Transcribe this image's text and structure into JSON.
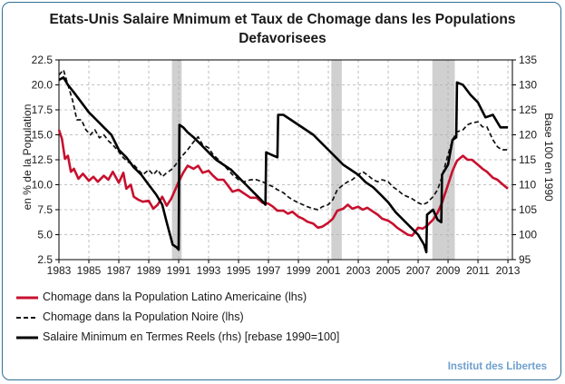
{
  "page": {
    "title_line1": "Etats-Unis Salaire Mnimum et Taux de Chomage  dans les Populations",
    "title_line2": "Defavorisees",
    "brand": "Institut des Libertes"
  },
  "colors": {
    "latino": "#c8102e",
    "noire": "#111111",
    "salaire": "#000000",
    "recession": "#d0d0d0",
    "grid": "#b0b0b0",
    "border": "#2f6f98",
    "brand": "#6f9fcf"
  },
  "chart_data": {
    "type": "line",
    "title": "Etats-Unis Salaire Mnimum et Taux de Chomage  dans les Populations Defavorisees",
    "xlabel": "",
    "ylabel_left": "en % de la Population",
    "ylabel_right": "Base 100 en 1990",
    "xlim": [
      1983,
      2013.3
    ],
    "ylim_left": [
      2.5,
      22.5
    ],
    "ylim_right": [
      95,
      135
    ],
    "x_ticks": [
      "1983",
      "1985",
      "1987",
      "1989",
      "1991",
      "1993",
      "1995",
      "1997",
      "1999",
      "2001",
      "2003",
      "2005",
      "2007",
      "2009",
      "2011",
      "2013"
    ],
    "y_left_ticks": [
      "2.5",
      "5.0",
      "7.5",
      "10.0",
      "12.5",
      "15.0",
      "17.5",
      "20.0",
      "22.5"
    ],
    "y_right_ticks": [
      "95",
      "100",
      "105",
      "110",
      "115",
      "120",
      "125",
      "130",
      "135"
    ],
    "grid": true,
    "recessions": [
      [
        1990.55,
        1991.2
      ],
      [
        2001.2,
        2001.9
      ],
      [
        2007.95,
        2009.45
      ]
    ],
    "series": [
      {
        "name": "Chomage dans la Population Latino Americaine (lhs)",
        "axis": "left",
        "style": "solid",
        "points": [
          [
            1983.0,
            15.5
          ],
          [
            1983.2,
            14.6
          ],
          [
            1983.4,
            12.6
          ],
          [
            1983.6,
            12.9
          ],
          [
            1983.8,
            11.3
          ],
          [
            1984.0,
            11.6
          ],
          [
            1984.3,
            10.6
          ],
          [
            1984.6,
            11.1
          ],
          [
            1985.0,
            10.4
          ],
          [
            1985.3,
            10.8
          ],
          [
            1985.6,
            10.3
          ],
          [
            1986.0,
            10.9
          ],
          [
            1986.3,
            10.5
          ],
          [
            1986.6,
            11.3
          ],
          [
            1987.0,
            10.2
          ],
          [
            1987.3,
            11.2
          ],
          [
            1987.5,
            9.6
          ],
          [
            1987.8,
            10.0
          ],
          [
            1988.0,
            8.8
          ],
          [
            1988.3,
            8.5
          ],
          [
            1988.6,
            8.3
          ],
          [
            1989.0,
            8.4
          ],
          [
            1989.3,
            7.6
          ],
          [
            1989.6,
            8.0
          ],
          [
            1989.9,
            8.8
          ],
          [
            1990.2,
            7.9
          ],
          [
            1990.5,
            8.6
          ],
          [
            1990.8,
            9.6
          ],
          [
            1991.0,
            10.3
          ],
          [
            1991.3,
            11.2
          ],
          [
            1991.6,
            11.9
          ],
          [
            1992.0,
            11.6
          ],
          [
            1992.3,
            11.9
          ],
          [
            1992.6,
            11.2
          ],
          [
            1993.0,
            11.4
          ],
          [
            1993.3,
            10.9
          ],
          [
            1993.6,
            10.5
          ],
          [
            1994.0,
            10.5
          ],
          [
            1994.3,
            9.9
          ],
          [
            1994.6,
            9.3
          ],
          [
            1995.0,
            9.5
          ],
          [
            1995.4,
            9.1
          ],
          [
            1995.8,
            8.7
          ],
          [
            1996.2,
            8.7
          ],
          [
            1996.6,
            8.2
          ],
          [
            1997.0,
            8.1
          ],
          [
            1997.3,
            7.8
          ],
          [
            1997.6,
            7.4
          ],
          [
            1998.0,
            7.4
          ],
          [
            1998.3,
            7.1
          ],
          [
            1998.6,
            7.3
          ],
          [
            1999.0,
            6.8
          ],
          [
            1999.3,
            6.6
          ],
          [
            1999.6,
            6.3
          ],
          [
            2000.0,
            6.1
          ],
          [
            2000.3,
            5.7
          ],
          [
            2000.6,
            5.8
          ],
          [
            2001.0,
            6.2
          ],
          [
            2001.3,
            6.6
          ],
          [
            2001.6,
            7.4
          ],
          [
            2002.0,
            7.6
          ],
          [
            2002.3,
            8.0
          ],
          [
            2002.6,
            7.6
          ],
          [
            2003.0,
            7.8
          ],
          [
            2003.3,
            7.5
          ],
          [
            2003.6,
            7.7
          ],
          [
            2004.0,
            7.3
          ],
          [
            2004.3,
            7.0
          ],
          [
            2004.6,
            6.6
          ],
          [
            2005.0,
            6.4
          ],
          [
            2005.3,
            6.1
          ],
          [
            2005.6,
            5.7
          ],
          [
            2006.0,
            5.3
          ],
          [
            2006.3,
            5.0
          ],
          [
            2006.6,
            4.9
          ],
          [
            2007.0,
            5.7
          ],
          [
            2007.3,
            5.6
          ],
          [
            2007.6,
            5.9
          ],
          [
            2008.0,
            6.5
          ],
          [
            2008.3,
            7.2
          ],
          [
            2008.6,
            8.2
          ],
          [
            2009.0,
            10.0
          ],
          [
            2009.3,
            11.4
          ],
          [
            2009.6,
            12.4
          ],
          [
            2010.0,
            12.9
          ],
          [
            2010.3,
            12.5
          ],
          [
            2010.6,
            12.5
          ],
          [
            2011.0,
            12.0
          ],
          [
            2011.3,
            11.6
          ],
          [
            2011.6,
            11.3
          ],
          [
            2012.0,
            10.7
          ],
          [
            2012.3,
            10.5
          ],
          [
            2012.6,
            10.1
          ],
          [
            2013.0,
            9.6
          ]
        ]
      },
      {
        "name": "Chomage dans la Population Noire (lhs)",
        "axis": "left",
        "style": "dashed",
        "points": [
          [
            1983.0,
            21.0
          ],
          [
            1983.3,
            21.5
          ],
          [
            1983.6,
            20.0
          ],
          [
            1983.9,
            18.5
          ],
          [
            1984.2,
            16.5
          ],
          [
            1984.5,
            16.5
          ],
          [
            1984.8,
            15.5
          ],
          [
            1985.1,
            15.0
          ],
          [
            1985.4,
            15.5
          ],
          [
            1985.7,
            14.7
          ],
          [
            1986.0,
            15.0
          ],
          [
            1986.3,
            14.4
          ],
          [
            1986.6,
            14.0
          ],
          [
            1987.0,
            13.3
          ],
          [
            1987.3,
            12.7
          ],
          [
            1987.6,
            12.3
          ],
          [
            1988.0,
            12.0
          ],
          [
            1988.3,
            11.5
          ],
          [
            1988.6,
            11.0
          ],
          [
            1989.0,
            11.5
          ],
          [
            1989.3,
            11.0
          ],
          [
            1989.6,
            11.5
          ],
          [
            1989.9,
            10.8
          ],
          [
            1990.2,
            11.2
          ],
          [
            1990.5,
            11.5
          ],
          [
            1990.8,
            12.0
          ],
          [
            1991.0,
            12.5
          ],
          [
            1991.3,
            13.0
          ],
          [
            1991.6,
            13.5
          ],
          [
            1992.0,
            14.3
          ],
          [
            1992.3,
            14.8
          ],
          [
            1992.6,
            14.0
          ],
          [
            1993.0,
            13.7
          ],
          [
            1993.3,
            13.0
          ],
          [
            1993.6,
            12.6
          ],
          [
            1994.0,
            12.0
          ],
          [
            1994.3,
            11.5
          ],
          [
            1994.6,
            11.0
          ],
          [
            1995.0,
            10.5
          ],
          [
            1995.4,
            10.3
          ],
          [
            1995.8,
            10.5
          ],
          [
            1996.2,
            10.5
          ],
          [
            1996.6,
            10.3
          ],
          [
            1997.0,
            10.0
          ],
          [
            1997.3,
            9.8
          ],
          [
            1997.6,
            9.5
          ],
          [
            1998.0,
            9.2
          ],
          [
            1998.3,
            8.8
          ],
          [
            1998.6,
            8.5
          ],
          [
            1999.0,
            8.2
          ],
          [
            1999.3,
            8.0
          ],
          [
            1999.6,
            7.8
          ],
          [
            2000.0,
            7.6
          ],
          [
            2000.3,
            7.5
          ],
          [
            2000.6,
            7.8
          ],
          [
            2001.0,
            8.0
          ],
          [
            2001.3,
            8.5
          ],
          [
            2001.6,
            9.5
          ],
          [
            2002.0,
            10.0
          ],
          [
            2002.3,
            10.3
          ],
          [
            2002.6,
            10.5
          ],
          [
            2003.0,
            11.0
          ],
          [
            2003.3,
            11.3
          ],
          [
            2003.6,
            11.0
          ],
          [
            2004.0,
            10.5
          ],
          [
            2004.3,
            10.3
          ],
          [
            2004.6,
            10.5
          ],
          [
            2005.0,
            10.3
          ],
          [
            2005.3,
            9.8
          ],
          [
            2005.6,
            9.5
          ],
          [
            2006.0,
            9.0
          ],
          [
            2006.3,
            8.8
          ],
          [
            2006.6,
            8.6
          ],
          [
            2007.0,
            8.2
          ],
          [
            2007.3,
            8.0
          ],
          [
            2007.6,
            8.2
          ],
          [
            2008.0,
            8.8
          ],
          [
            2008.3,
            9.5
          ],
          [
            2008.6,
            10.8
          ],
          [
            2009.0,
            13.0
          ],
          [
            2009.3,
            14.5
          ],
          [
            2009.6,
            15.3
          ],
          [
            2010.0,
            15.5
          ],
          [
            2010.3,
            16.0
          ],
          [
            2010.6,
            16.2
          ],
          [
            2011.0,
            16.3
          ],
          [
            2011.3,
            15.8
          ],
          [
            2011.6,
            15.8
          ],
          [
            2012.0,
            14.5
          ],
          [
            2012.3,
            13.8
          ],
          [
            2012.6,
            13.5
          ],
          [
            2013.0,
            13.5
          ]
        ]
      },
      {
        "name": "Salaire Minimum en Termes Reels (rhs) [rebase 1990=100]",
        "axis": "right",
        "style": "solid",
        "points": [
          [
            1983.0,
            131.0
          ],
          [
            1983.3,
            131.5
          ],
          [
            1983.6,
            130.0
          ],
          [
            1984.0,
            128.5
          ],
          [
            1984.5,
            126.5
          ],
          [
            1985.0,
            124.5
          ],
          [
            1985.5,
            123.0
          ],
          [
            1986.0,
            121.5
          ],
          [
            1986.5,
            120.0
          ],
          [
            1987.0,
            117.0
          ],
          [
            1987.5,
            115.5
          ],
          [
            1988.0,
            113.5
          ],
          [
            1988.5,
            112.0
          ],
          [
            1989.0,
            110.0
          ],
          [
            1989.5,
            108.0
          ],
          [
            1989.9,
            106.0
          ],
          [
            1990.2,
            102.5
          ],
          [
            1990.6,
            98.0
          ],
          [
            1990.85,
            97.5
          ],
          [
            1991.0,
            97.0
          ],
          [
            1991.05,
            122.0
          ],
          [
            1991.3,
            121.5
          ],
          [
            1991.6,
            120.5
          ],
          [
            1992.0,
            119.5
          ],
          [
            1992.5,
            118.0
          ],
          [
            1993.0,
            116.5
          ],
          [
            1993.5,
            115.0
          ],
          [
            1994.0,
            114.0
          ],
          [
            1994.5,
            113.0
          ],
          [
            1995.0,
            111.5
          ],
          [
            1995.5,
            110.0
          ],
          [
            1996.0,
            108.5
          ],
          [
            1996.5,
            107.0
          ],
          [
            1996.8,
            106.0
          ],
          [
            1996.85,
            116.5
          ],
          [
            1997.2,
            116.0
          ],
          [
            1997.6,
            115.5
          ],
          [
            1997.65,
            124.0
          ],
          [
            1998.0,
            124.0
          ],
          [
            1998.5,
            123.0
          ],
          [
            1999.0,
            122.0
          ],
          [
            1999.5,
            121.0
          ],
          [
            2000.0,
            120.0
          ],
          [
            2000.5,
            118.5
          ],
          [
            2001.0,
            117.0
          ],
          [
            2001.5,
            115.5
          ],
          [
            2002.0,
            114.0
          ],
          [
            2002.5,
            113.0
          ],
          [
            2003.0,
            112.0
          ],
          [
            2003.5,
            110.5
          ],
          [
            2004.0,
            109.5
          ],
          [
            2004.5,
            108.0
          ],
          [
            2005.0,
            106.5
          ],
          [
            2005.5,
            104.5
          ],
          [
            2006.0,
            103.0
          ],
          [
            2006.5,
            101.5
          ],
          [
            2007.0,
            100.0
          ],
          [
            2007.4,
            98.0
          ],
          [
            2007.55,
            96.5
          ],
          [
            2007.6,
            104.0
          ],
          [
            2008.0,
            105.0
          ],
          [
            2008.3,
            103.0
          ],
          [
            2008.55,
            102.5
          ],
          [
            2008.6,
            112.0
          ],
          [
            2009.0,
            114.0
          ],
          [
            2009.3,
            119.0
          ],
          [
            2009.55,
            119.5
          ],
          [
            2009.6,
            130.5
          ],
          [
            2010.0,
            130.0
          ],
          [
            2010.5,
            128.0
          ],
          [
            2011.0,
            126.5
          ],
          [
            2011.5,
            123.5
          ],
          [
            2012.0,
            124.0
          ],
          [
            2012.5,
            121.5
          ],
          [
            2013.0,
            121.5
          ]
        ]
      }
    ]
  }
}
